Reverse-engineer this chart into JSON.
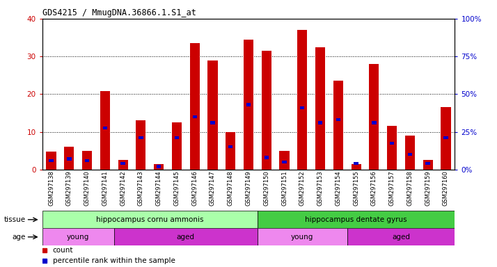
{
  "title": "GDS4215 / MmugDNA.36866.1.S1_at",
  "samples": [
    "GSM297138",
    "GSM297139",
    "GSM297140",
    "GSM297141",
    "GSM297142",
    "GSM297143",
    "GSM297144",
    "GSM297145",
    "GSM297146",
    "GSM297147",
    "GSM297148",
    "GSM297149",
    "GSM297150",
    "GSM297151",
    "GSM297152",
    "GSM297153",
    "GSM297154",
    "GSM297155",
    "GSM297156",
    "GSM297157",
    "GSM297158",
    "GSM297159",
    "GSM297160"
  ],
  "counts": [
    4.8,
    6.0,
    5.0,
    20.8,
    2.5,
    13.0,
    1.5,
    12.5,
    33.5,
    29.0,
    10.0,
    34.5,
    31.5,
    5.0,
    37.0,
    32.5,
    23.5,
    1.5,
    28.0,
    11.5,
    9.0,
    2.5,
    16.5
  ],
  "percentile_ranks": [
    6.0,
    7.0,
    6.0,
    27.5,
    4.0,
    21.0,
    2.0,
    21.0,
    35.0,
    31.0,
    15.0,
    43.0,
    8.0,
    5.0,
    41.0,
    31.0,
    33.0,
    4.0,
    31.0,
    17.5,
    10.0,
    4.0,
    21.0
  ],
  "ylim_left": [
    0,
    40
  ],
  "ylim_right": [
    0,
    100
  ],
  "yticks_left": [
    0,
    10,
    20,
    30,
    40
  ],
  "yticks_right": [
    0,
    25,
    50,
    75,
    100
  ],
  "bar_color": "#cc0000",
  "pct_color": "#0000cc",
  "tissue_groups": [
    {
      "label": "hippocampus cornu ammonis",
      "start": 0,
      "end": 12,
      "color": "#aaffaa"
    },
    {
      "label": "hippocampus dentate gyrus",
      "start": 12,
      "end": 23,
      "color": "#44cc44"
    }
  ],
  "age_groups": [
    {
      "label": "young",
      "start": 0,
      "end": 4,
      "color": "#ee88ee"
    },
    {
      "label": "aged",
      "start": 4,
      "end": 12,
      "color": "#cc33cc"
    },
    {
      "label": "young",
      "start": 12,
      "end": 17,
      "color": "#ee88ee"
    },
    {
      "label": "aged",
      "start": 17,
      "end": 23,
      "color": "#cc33cc"
    }
  ],
  "bg_color": "#ffffff",
  "plot_bg": "#ffffff",
  "xtick_bg": "#dddddd",
  "grid_color": "#000000",
  "axis_color_left": "#cc0000",
  "axis_color_right": "#0000cc",
  "bar_width": 0.55,
  "legend_items": [
    {
      "label": "count",
      "color": "#cc0000"
    },
    {
      "label": "percentile rank within the sample",
      "color": "#0000cc"
    }
  ]
}
